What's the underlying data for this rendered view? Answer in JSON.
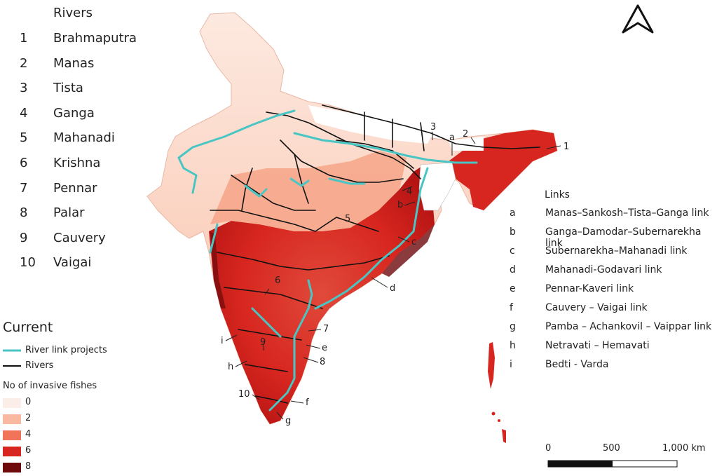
{
  "rivers_legend": {
    "title": "Rivers",
    "items": [
      {
        "num": "1",
        "name": "Brahmaputra"
      },
      {
        "num": "2",
        "name": "Manas"
      },
      {
        "num": "3",
        "name": "Tista"
      },
      {
        "num": "4",
        "name": "Ganga"
      },
      {
        "num": "5",
        "name": "Mahanadi"
      },
      {
        "num": "6",
        "name": "Krishna"
      },
      {
        "num": "7",
        "name": "Pennar"
      },
      {
        "num": "8",
        "name": "Palar"
      },
      {
        "num": "9",
        "name": "Cauvery"
      },
      {
        "num": "10",
        "name": "Vaigai"
      }
    ]
  },
  "links_legend": {
    "title": "Links",
    "items": [
      {
        "letter": "a",
        "name": "Manas–Sankosh–Tista–Ganga link"
      },
      {
        "letter": "b",
        "name": "Ganga–Damodar–Subernarekha link"
      },
      {
        "letter": "c",
        "name": "Subernarekha–Mahanadi link"
      },
      {
        "letter": "d",
        "name": "Mahanadi-Godavari link"
      },
      {
        "letter": "e",
        "name": "Pennar-Kaveri link"
      },
      {
        "letter": "f",
        "name": "Cauvery – Vaigai link"
      },
      {
        "letter": "g",
        "name": "Pamba – Achankovil – Vaippar link"
      },
      {
        "letter": "h",
        "name": "Netravati – Hemavati"
      },
      {
        "letter": "i",
        "name": "Bedti - Varda"
      }
    ]
  },
  "current_legend": {
    "title": "Current",
    "river_link_label": "River link projects",
    "rivers_label": "Rivers",
    "river_link_color": "#49c6c4",
    "river_color": "#111111"
  },
  "invasive_legend": {
    "title": "No of invasive fishes",
    "classes": [
      {
        "label": "0",
        "color": "#fbeee8"
      },
      {
        "label": "2",
        "color": "#f9b9a0"
      },
      {
        "label": "4",
        "color": "#f0735a"
      },
      {
        "label": "6",
        "color": "#d7261f"
      },
      {
        "label": "8",
        "color": "#6e0a0c"
      }
    ]
  },
  "scale_bar": {
    "labels": [
      "0",
      "500",
      "1,000 km"
    ]
  },
  "map_labels": {
    "rivers": [
      "1",
      "2",
      "3",
      "4",
      "5",
      "6",
      "7",
      "8",
      "9",
      "10"
    ],
    "links": [
      "a",
      "b",
      "c",
      "d",
      "e",
      "f",
      "g",
      "h",
      "i"
    ]
  },
  "north_arrow": "north-arrow-icon"
}
